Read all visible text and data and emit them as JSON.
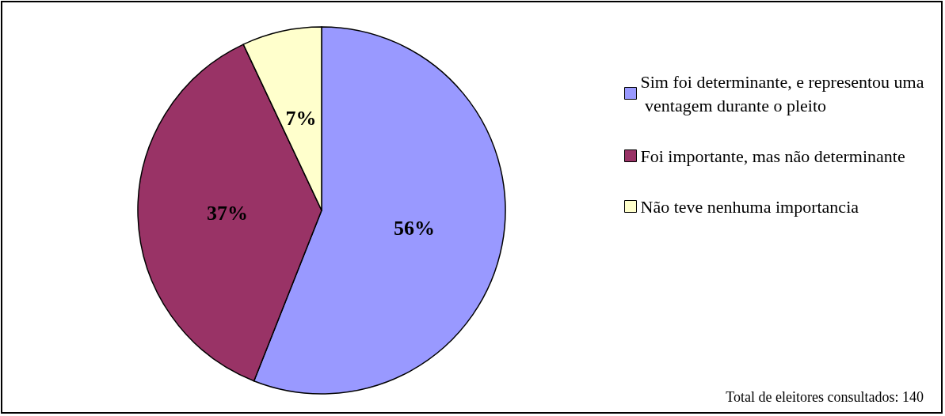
{
  "chart_data": {
    "type": "pie",
    "categories": [
      "Sim foi determinante, e representou uma ventagem durante o pleito",
      "Foi importante, mas não determinante",
      "Não teve nenhuma importancia"
    ],
    "values": [
      56,
      37,
      7
    ],
    "colors": [
      "#9999ff",
      "#993366",
      "#ffffcc"
    ],
    "value_labels": [
      "56%",
      "37%",
      "7%"
    ],
    "legend": "right",
    "annotations": [
      "Total de eleitores consultados: 140"
    ]
  }
}
